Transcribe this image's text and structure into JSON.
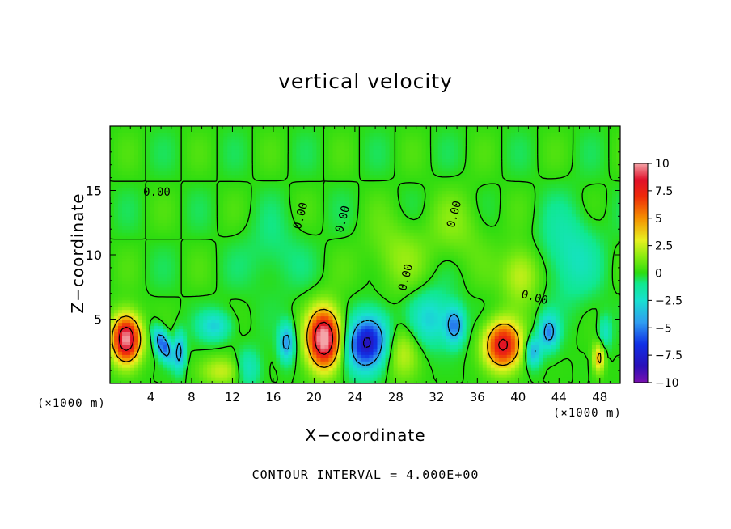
{
  "chart_data": {
    "type": "heatmap",
    "title": "vertical velocity",
    "xlabel": "X−coordinate",
    "ylabel": "Z−coordinate",
    "x_units_left": "(×1000 m)",
    "x_units_right": "(×1000 m)",
    "footer": "CONTOUR INTERVAL = 4.000E+00",
    "xlim": [
      0,
      50
    ],
    "ylim": [
      0,
      20
    ],
    "x_ticks": [
      4,
      8,
      12,
      16,
      20,
      24,
      28,
      32,
      36,
      40,
      44,
      48
    ],
    "y_ticks": [
      5,
      10,
      15
    ],
    "contour_label": "0.00",
    "contour_interval": 4,
    "colorbar": {
      "range": [
        -10,
        10
      ],
      "tick_values": [
        10,
        7.5,
        5,
        2.5,
        0,
        -2.5,
        -5,
        -7.5,
        -10
      ],
      "tick_labels": [
        "10",
        "7.5",
        "5",
        "2.5",
        "0",
        "−2.5",
        "−5",
        "−7.5",
        "−10"
      ],
      "stops": [
        {
          "value": -10,
          "color": "#7a10b0"
        },
        {
          "value": -8.5,
          "color": "#2a10b8"
        },
        {
          "value": -6.5,
          "color": "#1030e6"
        },
        {
          "value": -4.5,
          "color": "#2f9df0"
        },
        {
          "value": -2.5,
          "color": "#18e0d0"
        },
        {
          "value": -1,
          "color": "#10e890"
        },
        {
          "value": 0,
          "color": "#2cdc10"
        },
        {
          "value": 1.5,
          "color": "#8aec10"
        },
        {
          "value": 3,
          "color": "#e8f020"
        },
        {
          "value": 5,
          "color": "#f59000"
        },
        {
          "value": 7,
          "color": "#ee2a0a"
        },
        {
          "value": 8.5,
          "color": "#e0102a"
        },
        {
          "value": 10,
          "color": "#f4a4a8"
        }
      ]
    },
    "features": [
      {
        "x": 1.6,
        "z": 3.5,
        "w": 10.5,
        "sx": 1.0,
        "sz": 1.3,
        "rot": 0
      },
      {
        "x": 5.2,
        "z": 3.0,
        "w": -6.5,
        "sx": 0.45,
        "sz": 1.0,
        "rot": 0.5
      },
      {
        "x": 6.8,
        "z": 2.5,
        "w": -5.0,
        "sx": 0.35,
        "sz": 1.0,
        "rot": 0
      },
      {
        "x": 10.3,
        "z": 4.5,
        "w": -3.0,
        "sx": 1.1,
        "sz": 0.8,
        "rot": 0
      },
      {
        "x": 11.0,
        "z": 1.0,
        "w": 2.5,
        "sx": 1.5,
        "sz": 0.8,
        "rot": 0
      },
      {
        "x": 13.5,
        "z": 1.2,
        "w": -2.5,
        "sx": 0.8,
        "sz": 1.0,
        "rot": 0
      },
      {
        "x": 17.3,
        "z": 3.2,
        "w": -5.0,
        "sx": 0.5,
        "sz": 1.0,
        "rot": 0
      },
      {
        "x": 21.0,
        "z": 3.5,
        "w": 11.0,
        "sx": 1.15,
        "sz": 1.6,
        "rot": 0
      },
      {
        "x": 25.2,
        "z": 3.2,
        "w": -8.5,
        "sx": 1.3,
        "sz": 1.5,
        "rot": -0.5
      },
      {
        "x": 28.7,
        "z": 2.5,
        "w": 2.5,
        "sx": 1.2,
        "sz": 1.5,
        "rot": 0
      },
      {
        "x": 33.8,
        "z": 4.5,
        "w": -5.0,
        "sx": 0.6,
        "sz": 1.0,
        "rot": 0
      },
      {
        "x": 31.5,
        "z": 5.0,
        "w": -3.0,
        "sx": 1.5,
        "sz": 1.5,
        "rot": 0
      },
      {
        "x": 38.5,
        "z": 3.0,
        "w": 8.5,
        "sx": 1.25,
        "sz": 1.3,
        "rot": 0
      },
      {
        "x": 40.3,
        "z": 8.5,
        "w": 3.0,
        "sx": 1.3,
        "sz": 1.5,
        "rot": 0
      },
      {
        "x": 41.5,
        "z": 2.5,
        "w": -4.5,
        "sx": 0.5,
        "sz": 0.8,
        "rot": 0
      },
      {
        "x": 43.0,
        "z": 4.0,
        "w": -5.0,
        "sx": 0.6,
        "sz": 0.9,
        "rot": 0
      },
      {
        "x": 45.0,
        "z": 10.0,
        "w": -2.0,
        "sx": 2.0,
        "sz": 2.5,
        "rot": 0
      },
      {
        "x": 47.9,
        "z": 2.0,
        "w": 5.0,
        "sx": 0.35,
        "sz": 0.8,
        "rot": 0
      },
      {
        "x": 48.5,
        "z": 4.0,
        "w": -2.5,
        "sx": 0.4,
        "sz": 0.9,
        "rot": 0
      },
      {
        "x": 28.0,
        "z": 10.0,
        "w": 1.5,
        "sx": 2.0,
        "sz": 2.0,
        "rot": 0
      },
      {
        "x": 34.0,
        "z": 12.0,
        "w": 1.2,
        "sx": 2.0,
        "sz": 2.0,
        "rot": 0
      },
      {
        "x": 16.0,
        "z": 10.0,
        "w": -1.0,
        "sx": 2.0,
        "sz": 2.0,
        "rot": 0
      }
    ]
  }
}
